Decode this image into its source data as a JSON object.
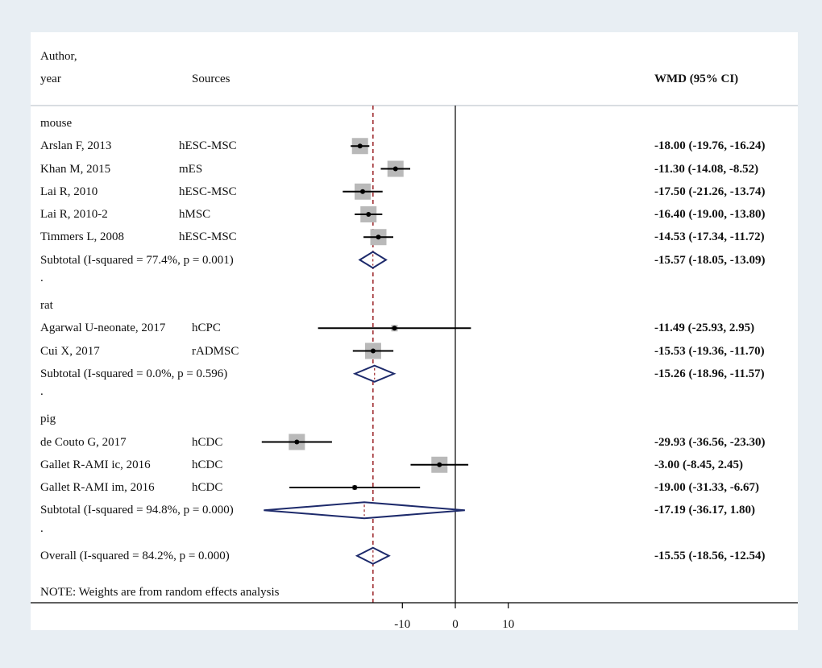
{
  "header": {
    "author_line1": "Author,",
    "author_line2": "year",
    "sources": "Sources",
    "wmd": "WMD (95% CI)"
  },
  "note": "NOTE: Weights are from random effects analysis",
  "chart_data": {
    "type": "forest",
    "xlim": [
      -42,
      35
    ],
    "xticks": [
      -10,
      0,
      10
    ],
    "null_line": 0,
    "overall_line": -15.55,
    "rows": [
      {
        "kind": "group",
        "label": "mouse"
      },
      {
        "kind": "study",
        "label": "Arslan F, 2013",
        "source": "hESC-MSC",
        "est": -18.0,
        "lo": -19.76,
        "hi": -16.24,
        "ci": "-18.00 (-19.76, -16.24)",
        "weight": 1.0
      },
      {
        "kind": "study",
        "label": "Khan M, 2015",
        "source": "mES",
        "est": -11.3,
        "lo": -14.08,
        "hi": -8.52,
        "ci": "-11.30 (-14.08, -8.52)",
        "weight": 1.0
      },
      {
        "kind": "study",
        "label": "Lai R, 2010",
        "source": "hESC-MSC",
        "est": -17.5,
        "lo": -21.26,
        "hi": -13.74,
        "ci": "-17.50 (-21.26, -13.74)",
        "weight": 1.0
      },
      {
        "kind": "study",
        "label": "Lai R, 2010-2",
        "source": "hMSC",
        "est": -16.4,
        "lo": -19.0,
        "hi": -13.8,
        "ci": "-16.40 (-19.00, -13.80)",
        "weight": 1.0
      },
      {
        "kind": "study",
        "label": "Timmers L, 2008",
        "source": "hESC-MSC",
        "est": -14.53,
        "lo": -17.34,
        "hi": -11.72,
        "ci": "-14.53 (-17.34, -11.72)",
        "weight": 1.0
      },
      {
        "kind": "subtotal",
        "label": "Subtotal  (I-squared = 77.4%, p = 0.001)",
        "est": -15.57,
        "lo": -18.05,
        "hi": -13.09,
        "ci": "-15.57 (-18.05, -13.09)"
      },
      {
        "kind": "dot",
        "label": "."
      },
      {
        "kind": "group",
        "label": "rat"
      },
      {
        "kind": "study",
        "label": "Agarwal U-neonate, 2017",
        "source": "hCPC",
        "est": -11.49,
        "lo": -25.93,
        "hi": 2.95,
        "ci": "-11.49 (-25.93, 2.95)",
        "weight": 0.4
      },
      {
        "kind": "study",
        "label": "Cui X, 2017",
        "source": "rADMSC",
        "est": -15.53,
        "lo": -19.36,
        "hi": -11.7,
        "ci": "-15.53 (-19.36, -11.70)",
        "weight": 1.0
      },
      {
        "kind": "subtotal",
        "label": "Subtotal  (I-squared = 0.0%, p = 0.596)",
        "est": -15.26,
        "lo": -18.96,
        "hi": -11.57,
        "ci": "-15.26 (-18.96, -11.57)"
      },
      {
        "kind": "dot",
        "label": "."
      },
      {
        "kind": "group",
        "label": "pig"
      },
      {
        "kind": "study",
        "label": "de Couto G, 2017",
        "source": "hCDC",
        "est": -29.93,
        "lo": -36.56,
        "hi": -23.3,
        "ci": "-29.93 (-36.56, -23.30)",
        "weight": 1.0
      },
      {
        "kind": "study",
        "label": "Gallet R-AMI ic, 2016",
        "source": "hCDC",
        "est": -3.0,
        "lo": -8.45,
        "hi": 2.45,
        "ci": "-3.00 (-8.45, 2.45)",
        "weight": 1.0
      },
      {
        "kind": "study",
        "label": "Gallet R-AMI im, 2016",
        "source": "hCDC",
        "est": -19.0,
        "lo": -31.33,
        "hi": -6.67,
        "ci": "-19.00 (-31.33, -6.67)",
        "weight": 0.3
      },
      {
        "kind": "subtotal",
        "label": "Subtotal  (I-squared = 94.8%, p = 0.000)",
        "est": -17.19,
        "lo": -36.17,
        "hi": 1.8,
        "ci": "-17.19 (-36.17, 1.80)"
      },
      {
        "kind": "dot",
        "label": "."
      },
      {
        "kind": "overall",
        "label": "Overall  (I-squared = 84.2%, p = 0.000)",
        "est": -15.55,
        "lo": -18.56,
        "hi": -12.54,
        "ci": "-15.55 (-18.56, -12.54)"
      }
    ]
  }
}
